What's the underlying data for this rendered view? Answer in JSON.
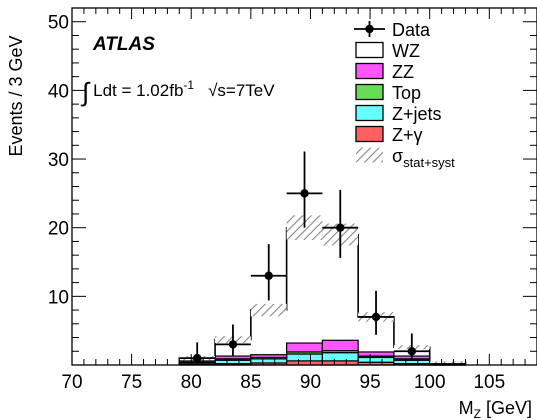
{
  "chart_data": {
    "type": "bar",
    "experiment_label": "ATLAS",
    "luminosity_label": {
      "integral_sign": "∫",
      "text": "Ldt = 1.02fb",
      "superscript": "-1",
      "energy_label": "√s=7TeV"
    },
    "xlabel": {
      "main": "M",
      "sub": "Z",
      "suffix": " [GeV]"
    },
    "ylabel": "Events / 3 GeV",
    "xlim": [
      70,
      109
    ],
    "ylim": [
      0,
      52
    ],
    "x_ticks": [
      70,
      75,
      80,
      85,
      90,
      95,
      100,
      105
    ],
    "y_ticks": [
      10,
      20,
      30,
      40,
      50
    ],
    "bin_edges": [
      79,
      82,
      85,
      88,
      91,
      94,
      97,
      100,
      103
    ],
    "stacks": [
      {
        "name": "Z+γ",
        "color": "#ff6060",
        "values": [
          0.1,
          0.2,
          0.3,
          0.6,
          0.6,
          0.4,
          0.2,
          0.05
        ]
      },
      {
        "name": "Z+jets",
        "color": "#66ffff",
        "values": [
          0.2,
          0.5,
          0.6,
          1.0,
          1.2,
          0.7,
          0.5,
          0.1
        ]
      },
      {
        "name": "Top",
        "color": "#66dd55",
        "values": [
          0.1,
          0.2,
          0.2,
          0.3,
          0.3,
          0.2,
          0.2,
          0.05
        ]
      },
      {
        "name": "ZZ",
        "color": "#ff55ff",
        "values": [
          0.2,
          0.4,
          0.4,
          1.3,
          1.5,
          0.6,
          0.4,
          0.1
        ]
      }
    ],
    "total": [
      1.0,
      3.7,
      8.0,
      20.0,
      19.0,
      7.0,
      2.6,
      0.4
    ],
    "uncertainty": [
      0.3,
      0.5,
      0.9,
      1.8,
      1.6,
      0.7,
      0.3,
      0.1
    ],
    "data": {
      "x": [
        80.5,
        83.5,
        86.5,
        89.5,
        92.5,
        95.5,
        98.5
      ],
      "y": [
        1,
        3,
        13,
        25,
        20,
        7,
        2
      ],
      "err_up": [
        2.3,
        2.9,
        4.6,
        6.1,
        5.5,
        3.8,
        2.6
      ],
      "err_down": [
        0.8,
        1.6,
        3.6,
        5.0,
        4.4,
        2.6,
        1.3
      ]
    },
    "legend": [
      {
        "key": "data",
        "label": "Data"
      },
      {
        "key": "wz",
        "label": "WZ",
        "color": "#ffffff"
      },
      {
        "key": "zz",
        "label": "ZZ",
        "color": "#ff55ff"
      },
      {
        "key": "top",
        "label": "Top",
        "color": "#66dd55"
      },
      {
        "key": "zjets",
        "label": "Z+jets",
        "color": "#66ffff"
      },
      {
        "key": "zg",
        "label": "Z+γ",
        "color": "#ff6060"
      },
      {
        "key": "sigma",
        "label": "σ",
        "sub": "stat+syst"
      }
    ]
  }
}
